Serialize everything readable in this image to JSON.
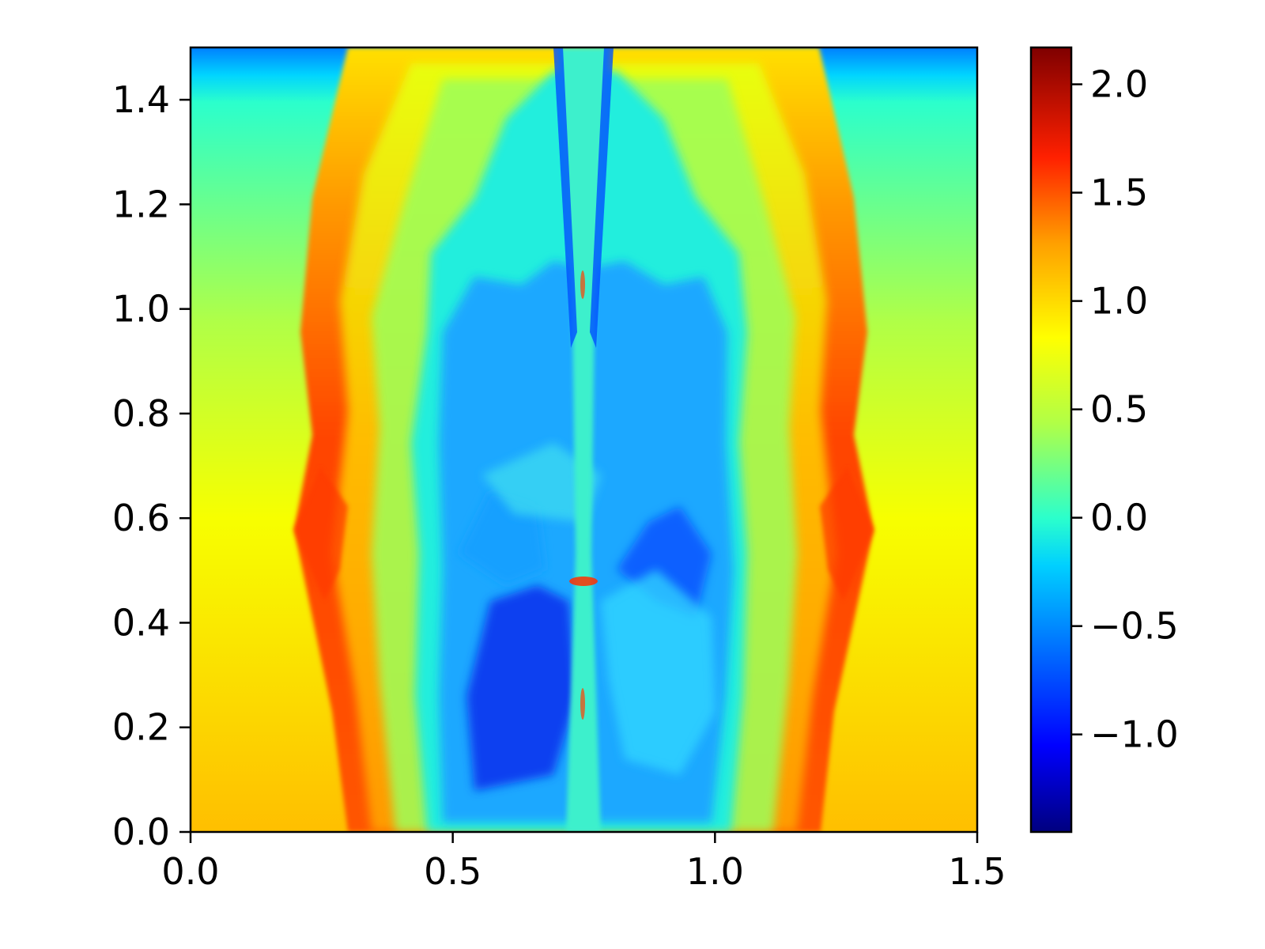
{
  "chart_data": {
    "type": "heatmap",
    "title": "",
    "xlabel": "",
    "ylabel": "",
    "xlim": [
      0.0,
      1.5
    ],
    "ylim": [
      0.0,
      1.5
    ],
    "x_ticks": [
      {
        "value": 0.0,
        "label": "0.0"
      },
      {
        "value": 0.5,
        "label": "0.5"
      },
      {
        "value": 1.0,
        "label": "1.0"
      },
      {
        "value": 1.5,
        "label": "1.5"
      }
    ],
    "y_ticks": [
      {
        "value": 0.0,
        "label": "0.0"
      },
      {
        "value": 0.2,
        "label": "0.2"
      },
      {
        "value": 0.4,
        "label": "0.4"
      },
      {
        "value": 0.6,
        "label": "0.6"
      },
      {
        "value": 0.8,
        "label": "0.8"
      },
      {
        "value": 1.0,
        "label": "1.0"
      },
      {
        "value": 1.2,
        "label": "1.2"
      },
      {
        "value": 1.4,
        "label": "1.4"
      }
    ],
    "colormap": "jet",
    "colorbar": {
      "range": [
        -1.45,
        2.17
      ],
      "ticks": [
        {
          "value": -1.0,
          "label": "−1.0"
        },
        {
          "value": -0.5,
          "label": "−0.5"
        },
        {
          "value": 0.0,
          "label": "0.0"
        },
        {
          "value": 0.5,
          "label": "0.5"
        },
        {
          "value": 1.0,
          "label": "1.0"
        },
        {
          "value": 1.5,
          "label": "1.5"
        },
        {
          "value": 2.0,
          "label": "2.0"
        }
      ]
    },
    "field_description_values": {
      "background_bottom": 1.2,
      "background_top": 0.3,
      "top_strip": -0.4,
      "shock_front": 1.6,
      "jet_core": 0.0,
      "cavity": -0.6,
      "deep_cavity": -1.1
    },
    "colors": {
      "axis": "#000000",
      "jet_stops": [
        "#00007f",
        "#0000ff",
        "#007fff",
        "#00ffff",
        "#7fff7f",
        "#ffff00",
        "#ff7f00",
        "#ff0000",
        "#7f0000"
      ]
    }
  }
}
